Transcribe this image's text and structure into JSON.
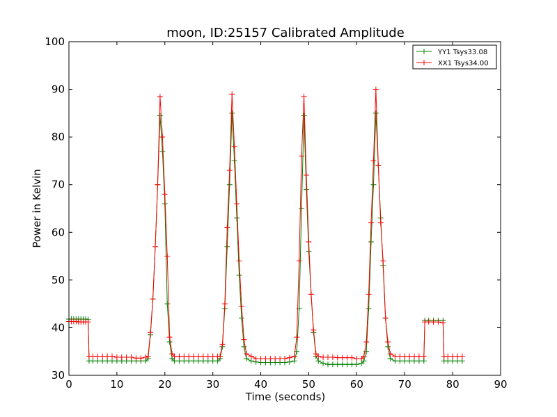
{
  "chart_data": {
    "type": "line",
    "title": "moon, ID:25157 Calibrated Amplitude",
    "xlabel": "Time (seconds)",
    "ylabel": "Power in Kelvin",
    "xlim": [
      0,
      90
    ],
    "ylim": [
      30,
      100
    ],
    "xticks": [
      0,
      10,
      20,
      30,
      40,
      50,
      60,
      70,
      80,
      90
    ],
    "yticks": [
      30,
      40,
      50,
      60,
      70,
      80,
      90,
      100
    ],
    "grid": false,
    "legend_position": "top-right",
    "marker": "+",
    "series": [
      {
        "name": "YY1 Tsys33.08",
        "color": "#008000",
        "points": [
          [
            0.0,
            41.8
          ],
          [
            0.5,
            41.8
          ],
          [
            1.0,
            41.8
          ],
          [
            1.5,
            41.8
          ],
          [
            2.0,
            41.8
          ],
          [
            2.5,
            41.8
          ],
          [
            3.0,
            41.8
          ],
          [
            3.5,
            41.8
          ],
          [
            4.0,
            41.7
          ],
          [
            4.2,
            33.0
          ],
          [
            5.0,
            33.0
          ],
          [
            6.0,
            33.0
          ],
          [
            7.0,
            33.0
          ],
          [
            8.0,
            33.0
          ],
          [
            9.0,
            33.0
          ],
          [
            10.0,
            33.0
          ],
          [
            11.0,
            33.0
          ],
          [
            12.0,
            33.0
          ],
          [
            13.0,
            33.0
          ],
          [
            14.0,
            33.0
          ],
          [
            15.0,
            33.0
          ],
          [
            16.0,
            33.0
          ],
          [
            16.5,
            33.5
          ],
          [
            17.0,
            38.5
          ],
          [
            17.5,
            46.0
          ],
          [
            18.0,
            57.0
          ],
          [
            18.5,
            70.0
          ],
          [
            19.0,
            84.5
          ],
          [
            19.5,
            77.0
          ],
          [
            20.0,
            66.0
          ],
          [
            20.5,
            45.0
          ],
          [
            21.0,
            37.0
          ],
          [
            21.5,
            33.5
          ],
          [
            22.0,
            33.0
          ],
          [
            23.0,
            33.0
          ],
          [
            24.0,
            33.0
          ],
          [
            25.0,
            33.0
          ],
          [
            26.0,
            33.0
          ],
          [
            27.0,
            33.0
          ],
          [
            28.0,
            33.0
          ],
          [
            29.0,
            33.0
          ],
          [
            30.0,
            33.0
          ],
          [
            31.0,
            33.0
          ],
          [
            31.5,
            33.5
          ],
          [
            32.0,
            36.0
          ],
          [
            32.5,
            44.0
          ],
          [
            33.0,
            57.0
          ],
          [
            33.5,
            70.0
          ],
          [
            34.0,
            85.0
          ],
          [
            34.5,
            75.0
          ],
          [
            35.0,
            63.0
          ],
          [
            35.5,
            51.0
          ],
          [
            36.0,
            42.0
          ],
          [
            36.5,
            36.0
          ],
          [
            37.0,
            33.5
          ],
          [
            38.0,
            33.0
          ],
          [
            39.0,
            32.8
          ],
          [
            40.0,
            32.7
          ],
          [
            41.0,
            32.7
          ],
          [
            42.0,
            32.7
          ],
          [
            43.0,
            32.7
          ],
          [
            44.0,
            32.7
          ],
          [
            45.0,
            32.7
          ],
          [
            46.0,
            32.8
          ],
          [
            47.0,
            33.0
          ],
          [
            47.5,
            35.0
          ],
          [
            48.0,
            44.0
          ],
          [
            48.5,
            65.0
          ],
          [
            49.0,
            84.5
          ],
          [
            49.5,
            69.0
          ],
          [
            50.0,
            56.0
          ],
          [
            50.5,
            47.0
          ],
          [
            51.0,
            39.0
          ],
          [
            51.5,
            34.0
          ],
          [
            52.0,
            33.0
          ],
          [
            53.0,
            32.5
          ],
          [
            54.0,
            32.3
          ],
          [
            55.0,
            32.3
          ],
          [
            56.0,
            32.3
          ],
          [
            57.0,
            32.3
          ],
          [
            58.0,
            32.3
          ],
          [
            59.0,
            32.3
          ],
          [
            60.0,
            32.3
          ],
          [
            61.0,
            32.5
          ],
          [
            61.5,
            33.0
          ],
          [
            62.0,
            35.0
          ],
          [
            62.5,
            44.0
          ],
          [
            63.0,
            58.0
          ],
          [
            63.5,
            70.0
          ],
          [
            64.0,
            85.0
          ],
          [
            64.5,
            74.0
          ],
          [
            65.0,
            63.0
          ],
          [
            65.5,
            53.0
          ],
          [
            66.0,
            42.0
          ],
          [
            66.5,
            36.0
          ],
          [
            67.0,
            33.5
          ],
          [
            68.0,
            33.0
          ],
          [
            69.0,
            33.0
          ],
          [
            70.0,
            33.0
          ],
          [
            71.0,
            33.0
          ],
          [
            72.0,
            33.0
          ],
          [
            73.0,
            33.0
          ],
          [
            74.0,
            33.0
          ],
          [
            74.2,
            41.5
          ],
          [
            75.0,
            41.5
          ],
          [
            76.0,
            41.5
          ],
          [
            77.0,
            41.5
          ],
          [
            78.0,
            41.5
          ],
          [
            78.2,
            33.0
          ],
          [
            79.0,
            33.0
          ],
          [
            80.0,
            33.0
          ],
          [
            81.0,
            33.0
          ],
          [
            82.0,
            33.0
          ]
        ]
      },
      {
        "name": "XX1 Tsys34.00",
        "color": "#ff0000",
        "points": [
          [
            0.0,
            41.3
          ],
          [
            0.5,
            41.3
          ],
          [
            1.0,
            41.3
          ],
          [
            1.5,
            41.3
          ],
          [
            2.0,
            41.2
          ],
          [
            2.5,
            41.2
          ],
          [
            3.0,
            41.2
          ],
          [
            3.5,
            41.2
          ],
          [
            4.0,
            41.2
          ],
          [
            4.2,
            34.0
          ],
          [
            5.0,
            34.0
          ],
          [
            6.0,
            34.0
          ],
          [
            7.0,
            34.0
          ],
          [
            8.0,
            34.0
          ],
          [
            9.0,
            34.0
          ],
          [
            10.0,
            33.8
          ],
          [
            11.0,
            33.8
          ],
          [
            12.0,
            33.8
          ],
          [
            13.0,
            33.8
          ],
          [
            14.0,
            33.6
          ],
          [
            15.0,
            33.6
          ],
          [
            16.0,
            33.8
          ],
          [
            16.5,
            34.0
          ],
          [
            17.0,
            39.0
          ],
          [
            17.5,
            46.0
          ],
          [
            18.0,
            57.0
          ],
          [
            18.5,
            70.0
          ],
          [
            19.0,
            88.5
          ],
          [
            19.5,
            80.0
          ],
          [
            20.0,
            68.0
          ],
          [
            20.5,
            55.0
          ],
          [
            21.0,
            38.0
          ],
          [
            21.5,
            34.5
          ],
          [
            22.0,
            34.0
          ],
          [
            23.0,
            34.0
          ],
          [
            24.0,
            34.0
          ],
          [
            25.0,
            34.0
          ],
          [
            26.0,
            34.0
          ],
          [
            27.0,
            34.0
          ],
          [
            28.0,
            34.0
          ],
          [
            29.0,
            34.0
          ],
          [
            30.0,
            34.0
          ],
          [
            31.0,
            34.0
          ],
          [
            31.5,
            34.0
          ],
          [
            32.0,
            36.5
          ],
          [
            32.5,
            45.0
          ],
          [
            33.0,
            61.0
          ],
          [
            33.5,
            73.0
          ],
          [
            34.0,
            89.0
          ],
          [
            34.5,
            78.0
          ],
          [
            35.0,
            66.0
          ],
          [
            35.5,
            54.0
          ],
          [
            36.0,
            44.5
          ],
          [
            36.5,
            37.5
          ],
          [
            37.0,
            34.5
          ],
          [
            38.0,
            34.0
          ],
          [
            39.0,
            33.5
          ],
          [
            40.0,
            33.5
          ],
          [
            41.0,
            33.5
          ],
          [
            42.0,
            33.5
          ],
          [
            43.0,
            33.5
          ],
          [
            44.0,
            33.5
          ],
          [
            45.0,
            33.5
          ],
          [
            46.0,
            33.7
          ],
          [
            47.0,
            34.0
          ],
          [
            47.5,
            38.0
          ],
          [
            48.0,
            54.0
          ],
          [
            48.5,
            76.0
          ],
          [
            49.0,
            88.5
          ],
          [
            49.5,
            72.0
          ],
          [
            50.0,
            58.0
          ],
          [
            50.5,
            47.0
          ],
          [
            51.0,
            39.5
          ],
          [
            51.5,
            34.5
          ],
          [
            52.0,
            34.0
          ],
          [
            53.0,
            33.8
          ],
          [
            54.0,
            33.8
          ],
          [
            55.0,
            33.8
          ],
          [
            56.0,
            33.7
          ],
          [
            57.0,
            33.7
          ],
          [
            58.0,
            33.7
          ],
          [
            59.0,
            33.7
          ],
          [
            60.0,
            33.5
          ],
          [
            61.0,
            33.5
          ],
          [
            61.5,
            34.0
          ],
          [
            62.0,
            37.0
          ],
          [
            62.5,
            47.0
          ],
          [
            63.0,
            62.0
          ],
          [
            63.5,
            75.0
          ],
          [
            64.0,
            90.0
          ],
          [
            64.5,
            74.0
          ],
          [
            65.0,
            62.0
          ],
          [
            65.5,
            54.0
          ],
          [
            66.0,
            42.0
          ],
          [
            66.5,
            37.0
          ],
          [
            67.0,
            34.5
          ],
          [
            68.0,
            34.0
          ],
          [
            69.0,
            34.0
          ],
          [
            70.0,
            34.0
          ],
          [
            71.0,
            34.0
          ],
          [
            72.0,
            34.0
          ],
          [
            73.0,
            34.0
          ],
          [
            74.0,
            34.0
          ],
          [
            74.2,
            41.2
          ],
          [
            75.0,
            41.2
          ],
          [
            76.0,
            41.2
          ],
          [
            77.0,
            41.2
          ],
          [
            78.0,
            41.0
          ],
          [
            78.2,
            34.0
          ],
          [
            79.0,
            34.0
          ],
          [
            80.0,
            34.0
          ],
          [
            81.0,
            34.0
          ],
          [
            82.0,
            34.0
          ]
        ]
      }
    ]
  }
}
